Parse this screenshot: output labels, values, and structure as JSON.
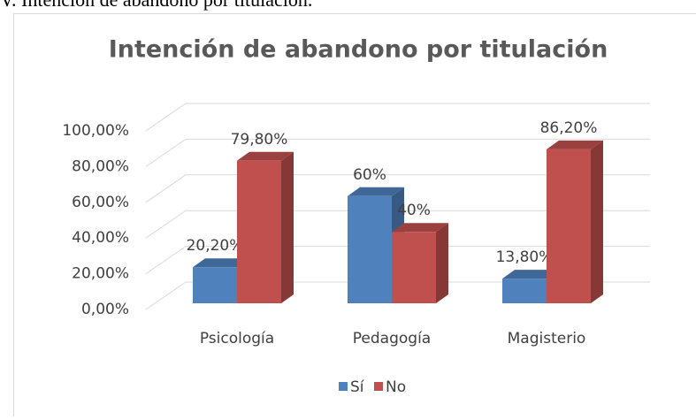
{
  "caption": "V. Intención de abandono por titulación.",
  "chart_data": {
    "type": "bar3d",
    "title": "Intención de abandono por titulación",
    "categories": [
      "Psicología",
      "Pedagogía",
      "Magisterio"
    ],
    "series": [
      {
        "name": "Sí",
        "color": "#4f81bd",
        "values": [
          20.2,
          60,
          13.8
        ],
        "value_labels": [
          "20,20%",
          "60%",
          "13,80%"
        ]
      },
      {
        "name": "No",
        "color": "#c0504d",
        "values": [
          79.8,
          40,
          86.2
        ],
        "value_labels": [
          "79,80%",
          "40%",
          "86,20%"
        ]
      }
    ],
    "ylim": [
      0,
      100
    ],
    "yticks": [
      {
        "value": 0,
        "label": "0,00%"
      },
      {
        "value": 20,
        "label": "20,00%"
      },
      {
        "value": 40,
        "label": "40,00%"
      },
      {
        "value": 60,
        "label": "60,00%"
      },
      {
        "value": 80,
        "label": "80,00%"
      },
      {
        "value": 100,
        "label": "100,00%"
      }
    ],
    "grid": true,
    "legend": "bottom"
  }
}
